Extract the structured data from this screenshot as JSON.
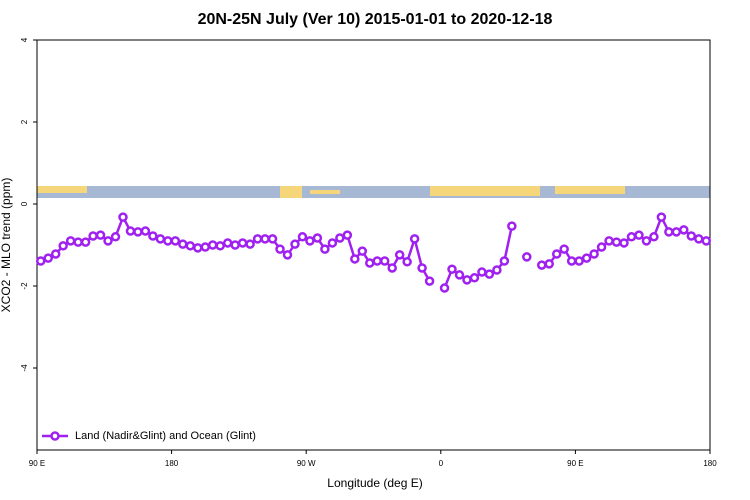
{
  "chart_data": {
    "type": "line",
    "title": "20N-25N July (Ver 10)   2015-01-01 to 2020-12-18",
    "x_label": "Longitude (deg E)",
    "y_label": "XCO2 - MLO trend (ppm)",
    "x": [
      92.5,
      97.5,
      102.5,
      107.5,
      112.5,
      117.5,
      122.5,
      127.5,
      132.5,
      137.5,
      142.5,
      147.5,
      152.5,
      157.5,
      162.5,
      167.5,
      172.5,
      177.5,
      182.5,
      187.5,
      192.5,
      197.5,
      202.5,
      207.5,
      212.5,
      217.5,
      222.5,
      227.5,
      232.5,
      237.5,
      242.5,
      247.5,
      252.5,
      257.5,
      262.5,
      267.5,
      272.5,
      277.5,
      282.5,
      287.5,
      292.5,
      297.5,
      302.5,
      307.5,
      312.5,
      317.5,
      322.5,
      327.5,
      332.5,
      337.5,
      342.5,
      347.5,
      352.5,
      357.5,
      362.5,
      367.5,
      372.5,
      377.5,
      382.5,
      387.5,
      392.5,
      397.5,
      402.5,
      407.5,
      412.5,
      417.5,
      422.5,
      427.5,
      432.5,
      437.5,
      442.5,
      447.5,
      452.5,
      457.5,
      462.5,
      467.5,
      472.5,
      477.5,
      482.5,
      487.5,
      492.5,
      497.5,
      502.5,
      507.5,
      512.5,
      517.5,
      522.5,
      527.5,
      532.5,
      537.5
    ],
    "series": [
      {
        "name": "Land (Nadir&Glint) and Ocean (Glint)",
        "color": "#a020f0",
        "values": [
          -1.39,
          -1.32,
          -1.22,
          -1.02,
          -0.9,
          -0.93,
          -0.93,
          -0.78,
          -0.76,
          -0.9,
          -0.8,
          -0.32,
          -0.66,
          -0.68,
          -0.66,
          -0.78,
          -0.85,
          -0.9,
          -0.9,
          -0.98,
          -1.02,
          -1.07,
          -1.05,
          -1.0,
          -1.02,
          -0.95,
          -1.0,
          -0.95,
          -0.98,
          -0.85,
          -0.85,
          -0.85,
          -1.1,
          -1.24,
          -0.98,
          -0.8,
          -0.9,
          -0.83,
          -1.1,
          -0.95,
          -0.83,
          -0.76,
          -1.34,
          -1.15,
          -1.44,
          -1.39,
          -1.39,
          -1.56,
          -1.24,
          -1.41,
          -0.85,
          -1.56,
          -1.88,
          null,
          -2.05,
          -1.59,
          -1.73,
          -1.85,
          -1.8,
          -1.66,
          -1.71,
          -1.61,
          -1.39,
          -0.54,
          null,
          -1.29,
          null,
          -1.49,
          -1.46,
          -1.22,
          -1.1,
          -1.39,
          -1.39,
          -1.32,
          -1.22,
          -1.05,
          -0.9,
          -0.93,
          -0.95,
          -0.8,
          -0.76,
          -0.9,
          -0.8,
          -0.32,
          -0.68,
          -0.68,
          -0.63,
          -0.78,
          -0.85,
          -0.9
        ]
      }
    ],
    "xlim": [
      90,
      540
    ],
    "xticks": [
      {
        "value": 90,
        "label": "90 E"
      },
      180,
      {
        "value": 270,
        "label": "90 W"
      },
      {
        "value": 360,
        "label": "0"
      },
      {
        "value": 450,
        "label": "90 E"
      },
      {
        "value": 540,
        "label": "180"
      }
    ],
    "ylim": [
      -6,
      4
    ],
    "yticks": [
      -4,
      -2,
      0,
      2,
      4
    ],
    "legend": "bottom-left"
  }
}
